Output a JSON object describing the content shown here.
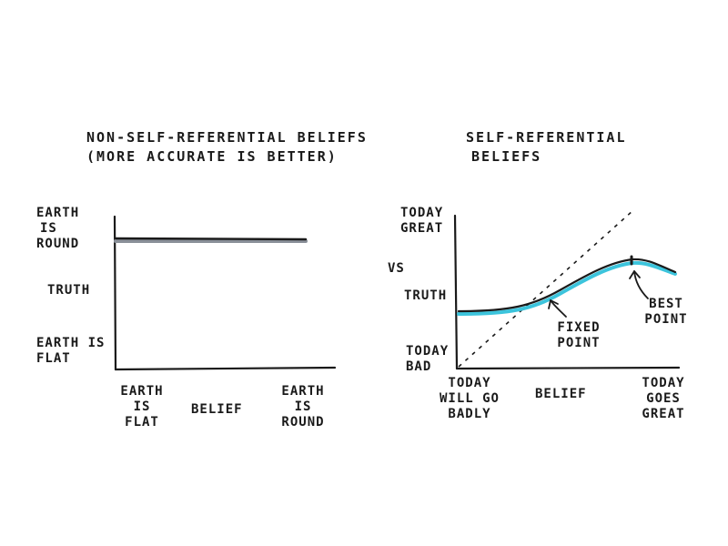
{
  "left": {
    "title_line1": "NON-SELF-REFERENTIAL BELIEFS",
    "title_line2": "(MORE ACCURATE IS BETTER)",
    "y_labels": {
      "top": [
        "EARTH",
        "IS",
        "ROUND"
      ],
      "middle": "TRUTH",
      "bottom": [
        "EARTH IS",
        "FLAT"
      ]
    },
    "x_labels": {
      "left": [
        "EARTH",
        "IS",
        "FLAT"
      ],
      "center": "BELIEF",
      "right": [
        "EARTH",
        "IS",
        "ROUND"
      ]
    }
  },
  "right": {
    "title_line1": "SELF-REFERENTIAL",
    "title_line2": "BELIEFS",
    "y_labels": {
      "top": [
        "TODAY",
        "GREAT"
      ],
      "vs": "VS",
      "middle": "TRUTH",
      "bottom": [
        "TODAY",
        "BAD"
      ]
    },
    "x_labels": {
      "left": [
        "TODAY",
        "WILL GO",
        "BADLY"
      ],
      "center": "BELIEF",
      "right": [
        "TODAY",
        "GOES",
        "GREAT"
      ]
    },
    "annotations": {
      "fixed_point": [
        "FIXED",
        "POINT"
      ],
      "best_point": [
        "BEST",
        "POINT"
      ]
    }
  },
  "colors": {
    "ink": "#1a1a1a",
    "highlight_gray": "#8a9099",
    "highlight_cyan": "#3cc4dc"
  }
}
